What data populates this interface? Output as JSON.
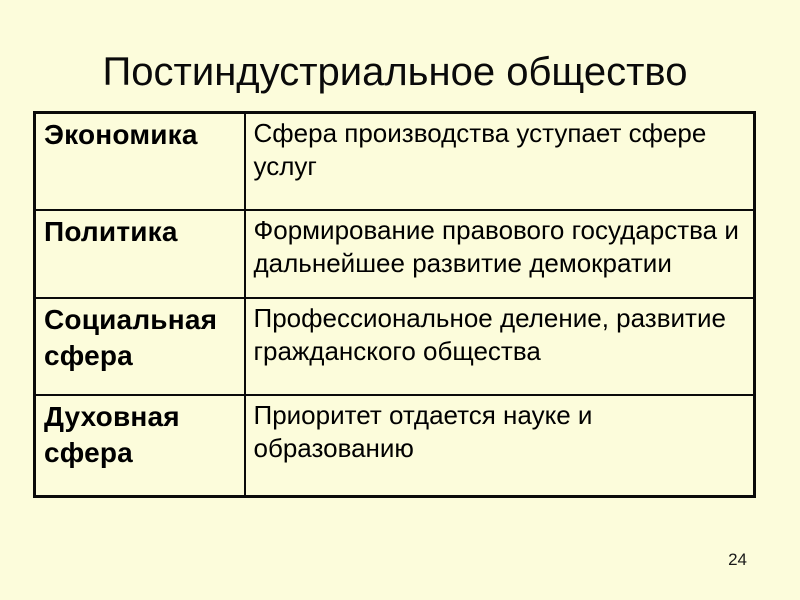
{
  "slide": {
    "title": "Постиндустриальное общество",
    "page_number": "24",
    "background_color": "#FCFCDB",
    "border_color": "#0a0a0a",
    "text_color": "#000000"
  },
  "table": {
    "rows": [
      {
        "label": "Экономика",
        "description": "Сфера производства уступает сфере услуг"
      },
      {
        "label": "Политика",
        "description": "Формирование правового государства и дальнейшее развитие демократии"
      },
      {
        "label": "Социальная сфера",
        "description": "Профессиональное деление, развитие гражданского общества"
      },
      {
        "label": "Духовная сфера",
        "description": "Приоритет отдается науке и образованию"
      }
    ]
  }
}
